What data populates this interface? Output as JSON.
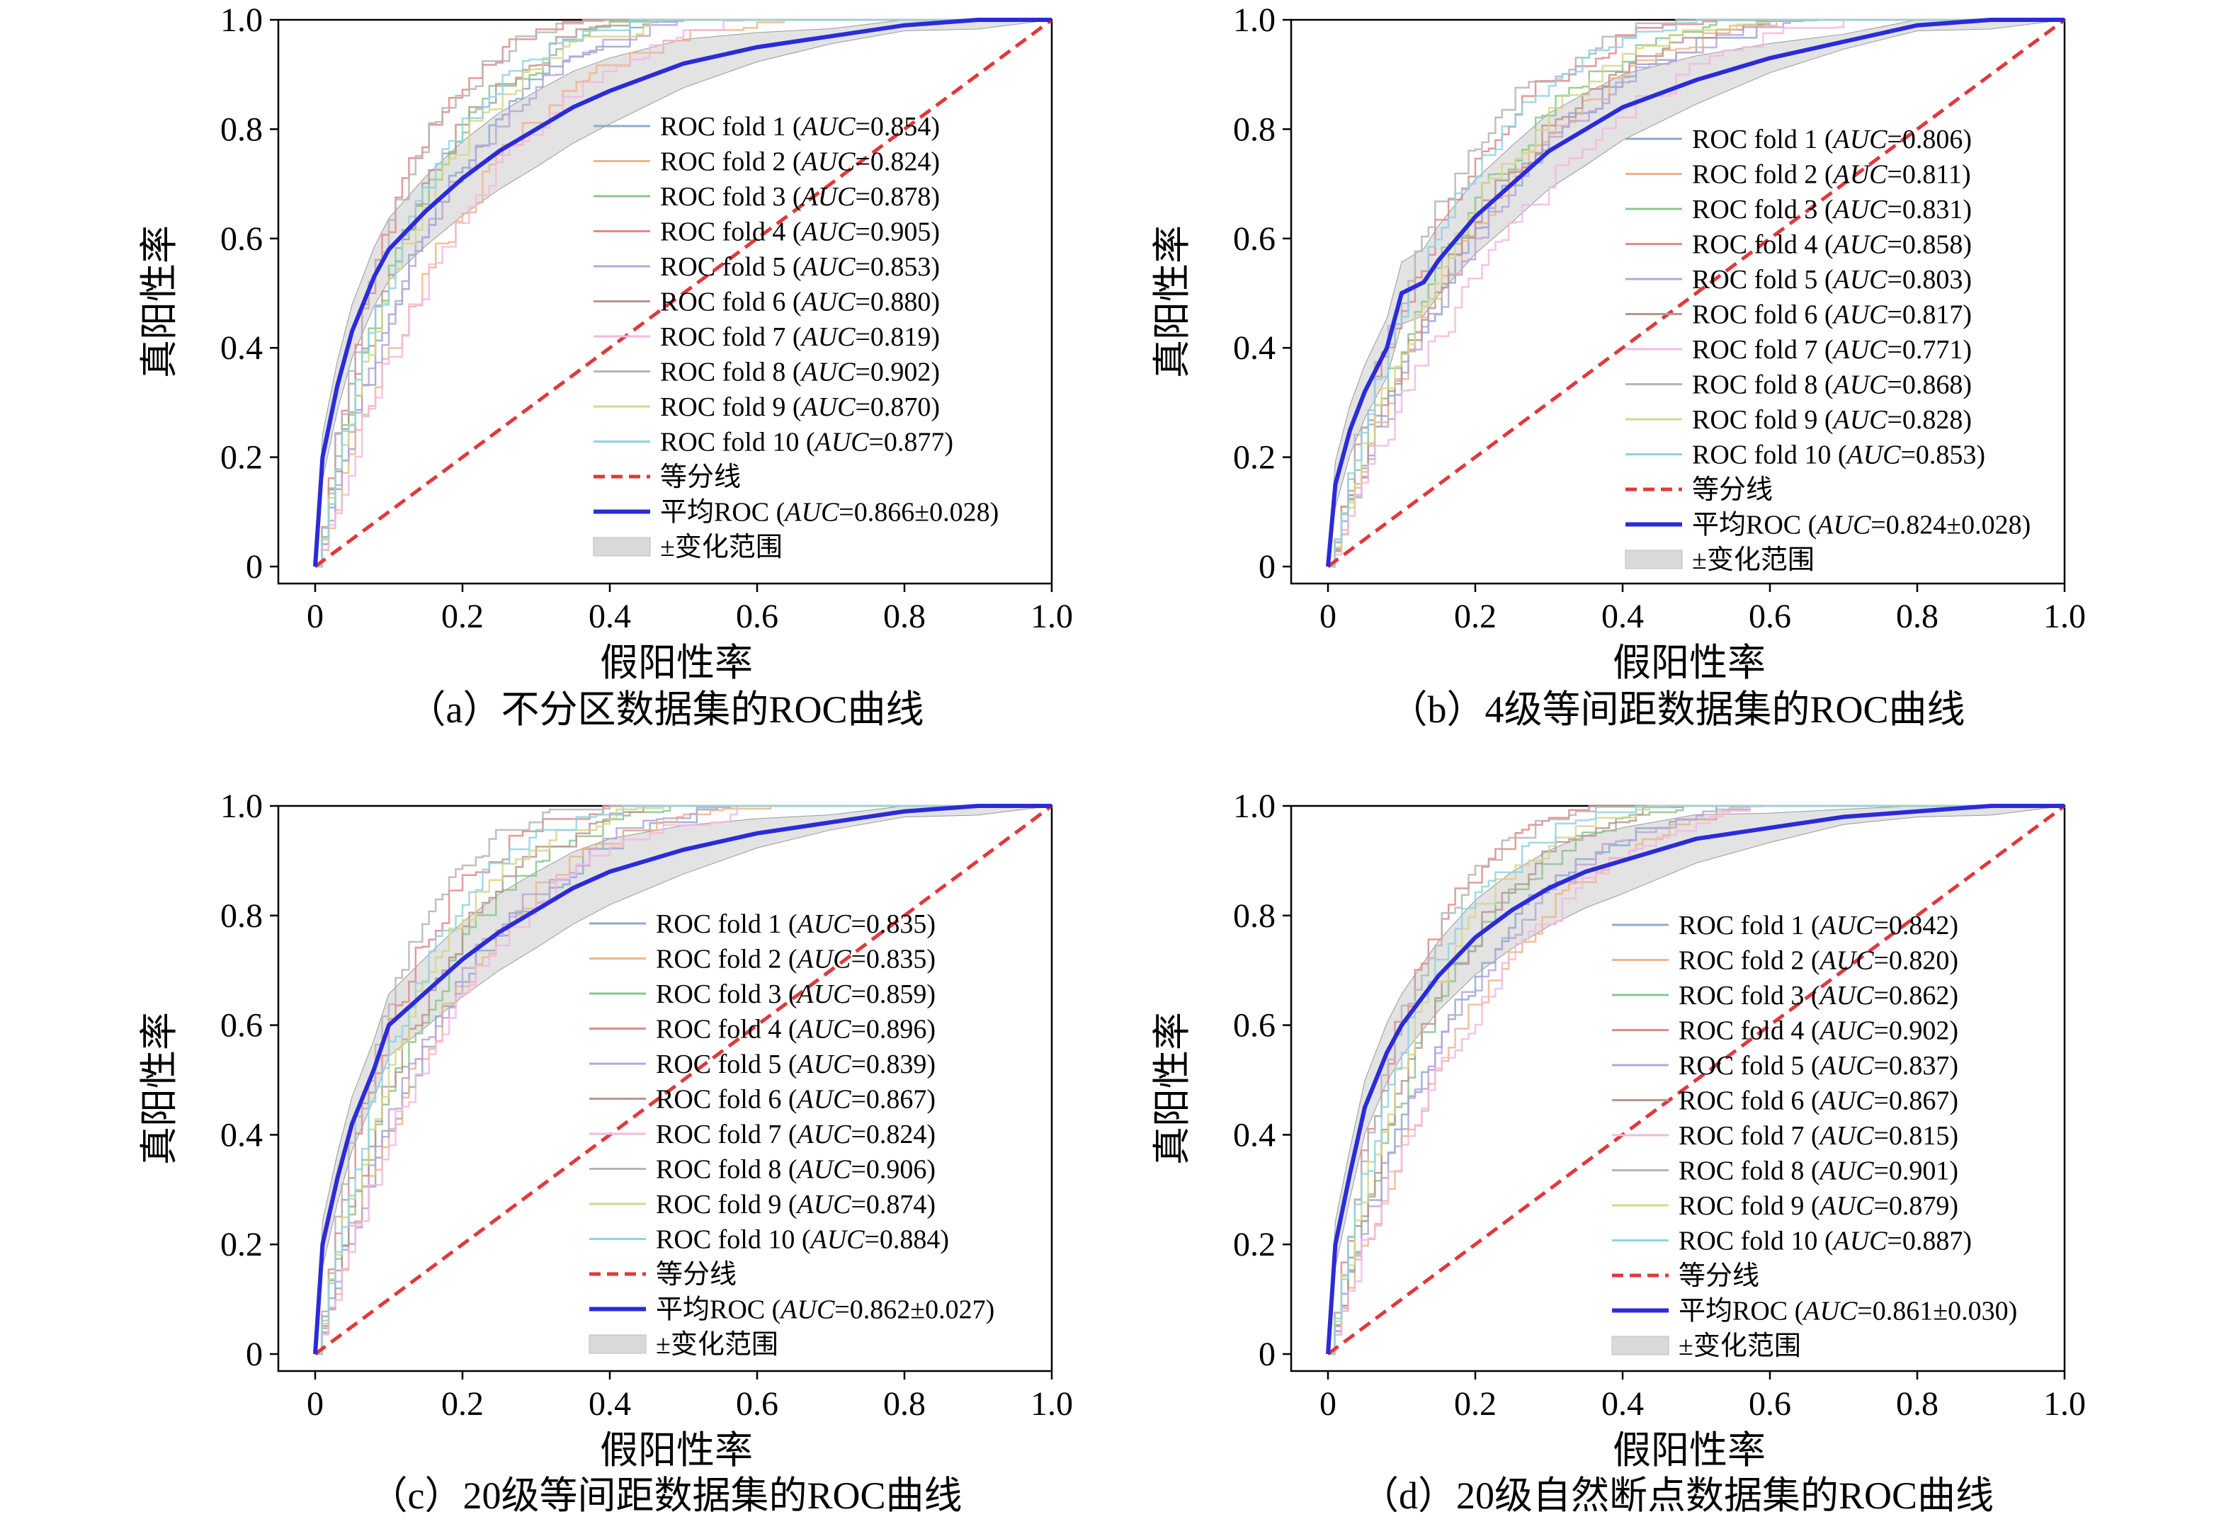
{
  "chart_data": [
    {
      "type": "line",
      "caption": "（a）不分区数据集的ROC曲线",
      "xlabel": "假阳性率",
      "ylabel": "真阳性率",
      "xlim": [
        0,
        1
      ],
      "ylim": [
        0,
        1
      ],
      "xticks": [
        "0",
        "0.2",
        "0.4",
        "0.6",
        "0.8",
        "1.0"
      ],
      "yticks": [
        "0",
        "0.2",
        "0.4",
        "0.6",
        "0.8",
        "1.0"
      ],
      "legend_position": "right",
      "folds": [
        {
          "prefix": "ROC fold 1 (",
          "auc": "=0.854)",
          "color": "#8fa9cf"
        },
        {
          "prefix": "ROC fold 2 (",
          "auc": "=0.824)",
          "color": "#f0b58a"
        },
        {
          "prefix": "ROC fold 3 (",
          "auc": "=0.878)",
          "color": "#8cc58c"
        },
        {
          "prefix": "ROC fold 4 (",
          "auc": "=0.905)",
          "color": "#e08a8a"
        },
        {
          "prefix": "ROC fold 5 (",
          "auc": "=0.853)",
          "color": "#b9a6d6"
        },
        {
          "prefix": "ROC fold 6 (",
          "auc": "=0.880)",
          "color": "#b89790"
        },
        {
          "prefix": "ROC fold 7 (",
          "auc": "=0.819)",
          "color": "#f3b8e0"
        },
        {
          "prefix": "ROC fold 8 (",
          "auc": "=0.902)",
          "color": "#b5b5b5"
        },
        {
          "prefix": "ROC fold 9 (",
          "auc": "=0.870)",
          "color": "#d6d68a"
        },
        {
          "prefix": "ROC fold 10 (",
          "auc": "=0.877)",
          "color": "#8fd3e3"
        }
      ],
      "auc_italic": "AUC",
      "chance_label": "等分线",
      "mean_prefix": "平均ROC (",
      "mean_auc": "=0.866±0.028)",
      "band_label": "±变化范围",
      "mean_auc_value": 0.866,
      "fold_auc_values": [
        0.854,
        0.824,
        0.878,
        0.905,
        0.853,
        0.88,
        0.819,
        0.902,
        0.87,
        0.877
      ],
      "mean_curve": {
        "x": [
          0,
          0.01,
          0.03,
          0.05,
          0.08,
          0.1,
          0.15,
          0.2,
          0.25,
          0.3,
          0.35,
          0.4,
          0.5,
          0.6,
          0.7,
          0.8,
          0.9,
          1.0
        ],
        "y": [
          0,
          0.2,
          0.33,
          0.43,
          0.53,
          0.58,
          0.65,
          0.71,
          0.76,
          0.8,
          0.84,
          0.87,
          0.92,
          0.95,
          0.97,
          0.99,
          1.0,
          1.0
        ]
      }
    },
    {
      "type": "line",
      "caption": "（b）4级等间距数据集的ROC曲线",
      "xlabel": "假阳性率",
      "ylabel": "真阳性率",
      "xlim": [
        0,
        1
      ],
      "ylim": [
        0,
        1
      ],
      "xticks": [
        "0",
        "0.2",
        "0.4",
        "0.6",
        "0.8",
        "1.0"
      ],
      "yticks": [
        "0",
        "0.2",
        "0.4",
        "0.6",
        "0.8",
        "1.0"
      ],
      "legend_position": "right",
      "folds": [
        {
          "prefix": "ROC fold 1 (",
          "auc": "=0.806)",
          "color": "#8fa9cf"
        },
        {
          "prefix": "ROC fold 2 (",
          "auc": "=0.811)",
          "color": "#f0b58a"
        },
        {
          "prefix": "ROC fold 3 (",
          "auc": "=0.831)",
          "color": "#8cc58c"
        },
        {
          "prefix": "ROC fold 4 (",
          "auc": "=0.858)",
          "color": "#e08a8a"
        },
        {
          "prefix": "ROC fold 5 (",
          "auc": "=0.803)",
          "color": "#b9a6d6"
        },
        {
          "prefix": "ROC fold 6 (",
          "auc": "=0.817)",
          "color": "#b89790"
        },
        {
          "prefix": "ROC fold 7 (",
          "auc": "=0.771)",
          "color": "#f3b8e0"
        },
        {
          "prefix": "ROC fold 8 (",
          "auc": "=0.868)",
          "color": "#b5b5b5"
        },
        {
          "prefix": "ROC fold 9 (",
          "auc": "=0.828)",
          "color": "#d6d68a"
        },
        {
          "prefix": "ROC fold 10 (",
          "auc": "=0.853)",
          "color": "#8fd3e3"
        }
      ],
      "auc_italic": "AUC",
      "chance_label": "等分线",
      "mean_prefix": "平均ROC (",
      "mean_auc": "=0.824±0.028)",
      "band_label": "±变化范围",
      "mean_auc_value": 0.824,
      "fold_auc_values": [
        0.806,
        0.811,
        0.831,
        0.858,
        0.803,
        0.817,
        0.771,
        0.868,
        0.828,
        0.853
      ],
      "mean_curve": {
        "x": [
          0,
          0.01,
          0.03,
          0.05,
          0.08,
          0.1,
          0.13,
          0.15,
          0.2,
          0.25,
          0.3,
          0.35,
          0.4,
          0.5,
          0.6,
          0.7,
          0.8,
          0.9,
          1.0
        ],
        "y": [
          0,
          0.15,
          0.25,
          0.32,
          0.4,
          0.5,
          0.52,
          0.56,
          0.64,
          0.7,
          0.76,
          0.8,
          0.84,
          0.89,
          0.93,
          0.96,
          0.99,
          1.0,
          1.0
        ]
      }
    },
    {
      "type": "line",
      "caption": "（c）20级等间距数据集的ROC曲线",
      "xlabel": "假阳性率",
      "ylabel": "真阳性率",
      "xlim": [
        0,
        1
      ],
      "ylim": [
        0,
        1
      ],
      "xticks": [
        "0",
        "0.2",
        "0.4",
        "0.6",
        "0.8",
        "1.0"
      ],
      "yticks": [
        "0",
        "0.2",
        "0.4",
        "0.6",
        "0.8",
        "1.0"
      ],
      "legend_position": "right",
      "folds": [
        {
          "prefix": "ROC fold 1 (",
          "auc": "=0.835)",
          "color": "#8fa9cf"
        },
        {
          "prefix": "ROC fold 2 (",
          "auc": "=0.835)",
          "color": "#f0b58a"
        },
        {
          "prefix": "ROC fold 3 (",
          "auc": "=0.859)",
          "color": "#8cc58c"
        },
        {
          "prefix": "ROC fold 4 (",
          "auc": "=0.896)",
          "color": "#e08a8a"
        },
        {
          "prefix": "ROC fold 5 (",
          "auc": "=0.839)",
          "color": "#b9a6d6"
        },
        {
          "prefix": "ROC fold 6 (",
          "auc": "=0.867)",
          "color": "#b89790"
        },
        {
          "prefix": "ROC fold 7 (",
          "auc": "=0.824)",
          "color": "#f3b8e0"
        },
        {
          "prefix": "ROC fold 8 (",
          "auc": "=0.906)",
          "color": "#b5b5b5"
        },
        {
          "prefix": "ROC fold 9 (",
          "auc": "=0.874)",
          "color": "#d6d68a"
        },
        {
          "prefix": "ROC fold 10 (",
          "auc": "=0.884)",
          "color": "#8fd3e3"
        }
      ],
      "auc_italic": "AUC",
      "chance_label": "等分线",
      "mean_prefix": "平均ROC (",
      "mean_auc": "=0.862±0.027)",
      "band_label": "±变化范围",
      "mean_auc_value": 0.862,
      "fold_auc_values": [
        0.835,
        0.835,
        0.859,
        0.896,
        0.839,
        0.867,
        0.824,
        0.906,
        0.874,
        0.884
      ],
      "mean_curve": {
        "x": [
          0,
          0.01,
          0.03,
          0.05,
          0.08,
          0.1,
          0.15,
          0.2,
          0.25,
          0.3,
          0.35,
          0.4,
          0.5,
          0.6,
          0.7,
          0.8,
          0.9,
          1.0
        ],
        "y": [
          0,
          0.2,
          0.32,
          0.42,
          0.52,
          0.6,
          0.66,
          0.72,
          0.77,
          0.81,
          0.85,
          0.88,
          0.92,
          0.95,
          0.97,
          0.99,
          1.0,
          1.0
        ]
      }
    },
    {
      "type": "line",
      "caption": "（d）20级自然断点数据集的ROC曲线",
      "xlabel": "假阳性率",
      "ylabel": "真阳性率",
      "xlim": [
        0,
        1
      ],
      "ylim": [
        0,
        1
      ],
      "xticks": [
        "0",
        "0.2",
        "0.4",
        "0.6",
        "0.8",
        "1.0"
      ],
      "yticks": [
        "0",
        "0.2",
        "0.4",
        "0.6",
        "0.8",
        "1.0"
      ],
      "legend_position": "right",
      "folds": [
        {
          "prefix": "ROC fold 1 (",
          "auc": "=0.842)",
          "color": "#8fa9cf"
        },
        {
          "prefix": "ROC fold 2 (",
          "auc": "=0.820)",
          "color": "#f0b58a"
        },
        {
          "prefix": "ROC fold 3 (",
          "auc": "=0.862)",
          "color": "#8cc58c"
        },
        {
          "prefix": "ROC fold 4 (",
          "auc": "=0.902)",
          "color": "#e08a8a"
        },
        {
          "prefix": "ROC fold 5 (",
          "auc": "=0.837)",
          "color": "#b9a6d6"
        },
        {
          "prefix": "ROC fold 6 (",
          "auc": "=0.867)",
          "color": "#b89790"
        },
        {
          "prefix": "ROC fold 7 (",
          "auc": "=0.815)",
          "color": "#f3b8e0"
        },
        {
          "prefix": "ROC fold 8 (",
          "auc": "=0.901)",
          "color": "#b5b5b5"
        },
        {
          "prefix": "ROC fold 9 (",
          "auc": "=0.879)",
          "color": "#d6d68a"
        },
        {
          "prefix": "ROC fold 10 (",
          "auc": "=0.887)",
          "color": "#8fd3e3"
        }
      ],
      "auc_italic": "AUC",
      "chance_label": "等分线",
      "mean_prefix": "平均ROC (",
      "mean_auc": "=0.861±0.030)",
      "band_label": "±变化范围",
      "mean_auc_value": 0.861,
      "fold_auc_values": [
        0.842,
        0.82,
        0.862,
        0.902,
        0.837,
        0.867,
        0.815,
        0.901,
        0.879,
        0.887
      ],
      "mean_curve": {
        "x": [
          0,
          0.01,
          0.03,
          0.05,
          0.08,
          0.1,
          0.15,
          0.2,
          0.25,
          0.3,
          0.35,
          0.4,
          0.5,
          0.6,
          0.7,
          0.8,
          0.9,
          1.0
        ],
        "y": [
          0,
          0.2,
          0.33,
          0.45,
          0.55,
          0.6,
          0.69,
          0.76,
          0.81,
          0.85,
          0.88,
          0.9,
          0.94,
          0.96,
          0.98,
          0.99,
          1.0,
          1.0
        ]
      }
    }
  ],
  "colors": {
    "mean_curve": "#2b2bd9",
    "chance_line": "#e0393c",
    "band_fill": "#d9d9d9"
  }
}
